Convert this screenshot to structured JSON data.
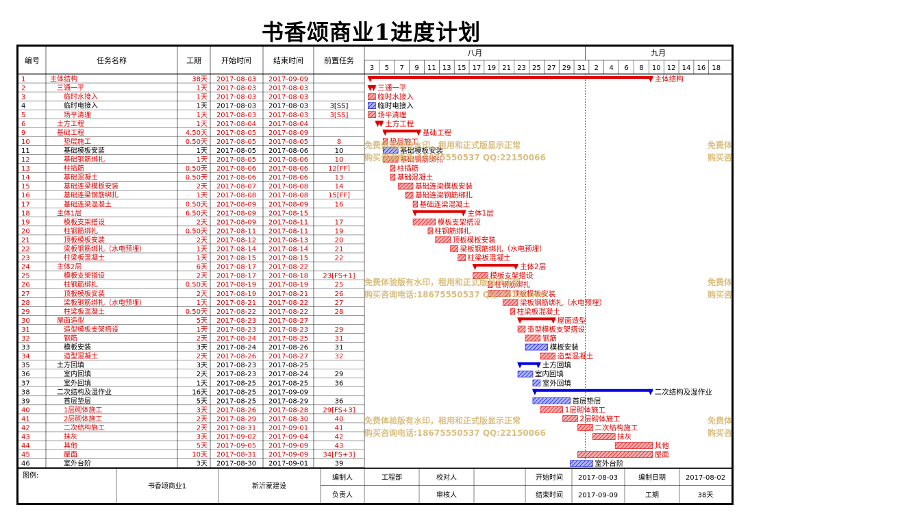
{
  "title": "书香颂商业1进度计划",
  "headers": {
    "id": "编号",
    "name": "任务名称",
    "duration": "工期",
    "start": "开始时间",
    "end": "结束时间",
    "pred": "前置任务"
  },
  "months": [
    {
      "label": "八月"
    },
    {
      "label": "九月"
    }
  ],
  "day_ticks": [
    "3",
    "5",
    "7",
    "9",
    "11",
    "13",
    "15",
    "17",
    "19",
    "21",
    "23",
    "25",
    "27",
    "29",
    "31",
    "2",
    "4",
    "6",
    "8",
    "10",
    "12",
    "14",
    "16",
    "18"
  ],
  "watermark": {
    "line1": "免费体验版有水印，租用和正式版显示正常",
    "line2": "购买咨询电话:18675550537 QQ:22150066"
  },
  "tasks": [
    {
      "id": "1",
      "name": "主体结构",
      "level": 0,
      "duration": "38天",
      "start": "2017-08-03",
      "end": "2017-09-09",
      "pred": "",
      "color": "red",
      "type": "summary"
    },
    {
      "id": "2",
      "name": "三通一平",
      "level": 1,
      "duration": "1天",
      "start": "2017-08-03",
      "end": "2017-08-03",
      "pred": "",
      "color": "red",
      "type": "summary"
    },
    {
      "id": "3",
      "name": "临时水接入",
      "level": 2,
      "duration": "1天",
      "start": "2017-08-03",
      "end": "2017-08-03",
      "pred": "",
      "color": "red",
      "type": "task"
    },
    {
      "id": "4",
      "name": "临时电接入",
      "level": 2,
      "duration": "1天",
      "start": "2017-08-03",
      "end": "2017-08-03",
      "pred": "3[SS]",
      "color": "blue",
      "type": "task"
    },
    {
      "id": "5",
      "name": "场平清理",
      "level": 2,
      "duration": "1天",
      "start": "2017-08-03",
      "end": "2017-08-03",
      "pred": "3[SS]",
      "color": "red",
      "type": "task"
    },
    {
      "id": "6",
      "name": "土方工程",
      "level": 1,
      "duration": "1天",
      "start": "2017-08-04",
      "end": "2017-08-04",
      "pred": "",
      "color": "red",
      "type": "summary"
    },
    {
      "id": "9",
      "name": "基础工程",
      "level": 1,
      "duration": "4.50天",
      "start": "2017-08-05",
      "end": "2017-08-09",
      "pred": "",
      "color": "red",
      "type": "summary"
    },
    {
      "id": "10",
      "name": "垫层施工",
      "level": 2,
      "duration": "0.50天",
      "start": "2017-08-05",
      "end": "2017-08-05",
      "pred": "8",
      "color": "red",
      "type": "task"
    },
    {
      "id": "11",
      "name": "基础模板安装",
      "level": 2,
      "duration": "1天",
      "start": "2017-08-05",
      "end": "2017-08-06",
      "pred": "10",
      "color": "blue",
      "type": "task"
    },
    {
      "id": "12",
      "name": "基础钢筋绑扎",
      "level": 2,
      "duration": "1天",
      "start": "2017-08-05",
      "end": "2017-08-06",
      "pred": "10",
      "color": "red",
      "type": "task"
    },
    {
      "id": "13",
      "name": "柱插筋",
      "level": 2,
      "duration": "0.50天",
      "start": "2017-08-06",
      "end": "2017-08-06",
      "pred": "12[FF]",
      "color": "red",
      "type": "task"
    },
    {
      "id": "14",
      "name": "基础混凝土",
      "level": 2,
      "duration": "0.50天",
      "start": "2017-08-06",
      "end": "2017-08-06",
      "pred": "13",
      "color": "red",
      "type": "task"
    },
    {
      "id": "15",
      "name": "基础连梁模板安装",
      "level": 2,
      "duration": "2天",
      "start": "2017-08-07",
      "end": "2017-08-08",
      "pred": "14",
      "color": "red",
      "type": "task"
    },
    {
      "id": "16",
      "name": "基础连梁钢筋绑扎",
      "level": 2,
      "duration": "1天",
      "start": "2017-08-08",
      "end": "2017-08-08",
      "pred": "15[FF]",
      "color": "red",
      "type": "task"
    },
    {
      "id": "17",
      "name": "基础连梁混凝土",
      "level": 2,
      "duration": "0.50天",
      "start": "2017-08-09",
      "end": "2017-08-09",
      "pred": "16",
      "color": "red",
      "type": "task"
    },
    {
      "id": "18",
      "name": "主体1层",
      "level": 1,
      "duration": "6.50天",
      "start": "2017-08-09",
      "end": "2017-08-15",
      "pred": "",
      "color": "red",
      "type": "summary"
    },
    {
      "id": "19",
      "name": "模板支架搭设",
      "level": 2,
      "duration": "2天",
      "start": "2017-08-09",
      "end": "2017-08-11",
      "pred": "17",
      "color": "red",
      "type": "task"
    },
    {
      "id": "20",
      "name": "柱钢筋绑扎",
      "level": 2,
      "duration": "0.50天",
      "start": "2017-08-11",
      "end": "2017-08-11",
      "pred": "19",
      "color": "red",
      "type": "task"
    },
    {
      "id": "21",
      "name": "顶板模板安装",
      "level": 2,
      "duration": "2天",
      "start": "2017-08-12",
      "end": "2017-08-13",
      "pred": "20",
      "color": "red",
      "type": "task"
    },
    {
      "id": "22",
      "name": "梁板钢筋绑扎（水电预埋）",
      "level": 2,
      "duration": "1天",
      "start": "2017-08-14",
      "end": "2017-08-14",
      "pred": "21",
      "color": "red",
      "type": "task"
    },
    {
      "id": "23",
      "name": "柱梁板混凝土",
      "level": 2,
      "duration": "1天",
      "start": "2017-08-15",
      "end": "2017-08-15",
      "pred": "22",
      "color": "red",
      "type": "task"
    },
    {
      "id": "24",
      "name": "主体2层",
      "level": 1,
      "duration": "6天",
      "start": "2017-08-17",
      "end": "2017-08-22",
      "pred": "",
      "color": "red",
      "type": "summary"
    },
    {
      "id": "25",
      "name": "模板支架搭设",
      "level": 2,
      "duration": "2天",
      "start": "2017-08-17",
      "end": "2017-08-18",
      "pred": "23[FS+1]",
      "color": "red",
      "type": "task"
    },
    {
      "id": "26",
      "name": "柱钢筋绑扎",
      "level": 2,
      "duration": "0.50天",
      "start": "2017-08-19",
      "end": "2017-08-19",
      "pred": "25",
      "color": "red",
      "type": "task"
    },
    {
      "id": "27",
      "name": "顶板模板安装",
      "level": 2,
      "duration": "2天",
      "start": "2017-08-19",
      "end": "2017-08-21",
      "pred": "26",
      "color": "red",
      "type": "task"
    },
    {
      "id": "28",
      "name": "梁板钢筋绑扎（水电预埋）",
      "level": 2,
      "duration": "1天",
      "start": "2017-08-21",
      "end": "2017-08-22",
      "pred": "27",
      "color": "red",
      "type": "task"
    },
    {
      "id": "29",
      "name": "柱梁板混凝土",
      "level": 2,
      "duration": "0.50天",
      "start": "2017-08-22",
      "end": "2017-08-22",
      "pred": "28",
      "color": "red",
      "type": "task"
    },
    {
      "id": "30",
      "name": "屋面造型",
      "level": 1,
      "duration": "5天",
      "start": "2017-08-23",
      "end": "2017-08-27",
      "pred": "",
      "color": "red",
      "type": "summary"
    },
    {
      "id": "31",
      "name": "造型模板支架搭设",
      "level": 2,
      "duration": "1天",
      "start": "2017-08-23",
      "end": "2017-08-23",
      "pred": "29",
      "color": "red",
      "type": "task"
    },
    {
      "id": "32",
      "name": "钢筋",
      "level": 2,
      "duration": "2天",
      "start": "2017-08-24",
      "end": "2017-08-25",
      "pred": "31",
      "color": "red",
      "type": "task"
    },
    {
      "id": "33",
      "name": "模板安装",
      "level": 2,
      "duration": "3天",
      "start": "2017-08-24",
      "end": "2017-08-26",
      "pred": "31",
      "color": "blue",
      "type": "task"
    },
    {
      "id": "34",
      "name": "造型混凝土",
      "level": 2,
      "duration": "2天",
      "start": "2017-08-26",
      "end": "2017-08-27",
      "pred": "32",
      "color": "red",
      "type": "task"
    },
    {
      "id": "35",
      "name": "土方回填",
      "level": 1,
      "duration": "3天",
      "start": "2017-08-23",
      "end": "2017-08-25",
      "pred": "",
      "color": "blue",
      "type": "summary"
    },
    {
      "id": "36",
      "name": "室内回填",
      "level": 2,
      "duration": "2天",
      "start": "2017-08-23",
      "end": "2017-08-24",
      "pred": "29",
      "color": "blue",
      "type": "task"
    },
    {
      "id": "37",
      "name": "室外回填",
      "level": 2,
      "duration": "1天",
      "start": "2017-08-25",
      "end": "2017-08-25",
      "pred": "36",
      "color": "blue",
      "type": "task"
    },
    {
      "id": "38",
      "name": "二次结构及湿作业",
      "level": 1,
      "duration": "16天",
      "start": "2017-08-25",
      "end": "2017-09-09",
      "pred": "",
      "color": "blue",
      "type": "summary"
    },
    {
      "id": "39",
      "name": "首层垫层",
      "level": 2,
      "duration": "5天",
      "start": "2017-08-25",
      "end": "2017-08-29",
      "pred": "36",
      "color": "blue",
      "type": "task"
    },
    {
      "id": "40",
      "name": "1层砌体施工",
      "level": 2,
      "duration": "3天",
      "start": "2017-08-26",
      "end": "2017-08-28",
      "pred": "29[FS+3]",
      "color": "red",
      "type": "task"
    },
    {
      "id": "41",
      "name": "2层砌体施工",
      "level": 2,
      "duration": "2天",
      "start": "2017-08-29",
      "end": "2017-08-30",
      "pred": "40",
      "color": "red",
      "type": "task"
    },
    {
      "id": "42",
      "name": "二次结构施工",
      "level": 2,
      "duration": "2天",
      "start": "2017-08-31",
      "end": "2017-09-01",
      "pred": "41",
      "color": "red",
      "type": "task"
    },
    {
      "id": "43",
      "name": "抹灰",
      "level": 2,
      "duration": "3天",
      "start": "2017-09-02",
      "end": "2017-09-04",
      "pred": "42",
      "color": "red",
      "type": "task"
    },
    {
      "id": "44",
      "name": "其他",
      "level": 2,
      "duration": "5天",
      "start": "2017-09-05",
      "end": "2017-09-09",
      "pred": "43",
      "color": "red",
      "type": "task"
    },
    {
      "id": "45",
      "name": "屋面",
      "level": 2,
      "duration": "10天",
      "start": "2017-08-31",
      "end": "2017-09-09",
      "pred": "34[FS+3]",
      "color": "red",
      "type": "task"
    },
    {
      "id": "46",
      "name": "室外台阶",
      "level": 2,
      "duration": "3天",
      "start": "2017-08-30",
      "end": "2017-09-01",
      "pred": "39",
      "color": "blue",
      "type": "task"
    }
  ],
  "footer": {
    "legend_label": "图例:",
    "project": "书香颂商业1",
    "company": "新沂蒙建设",
    "compiler_label": "编制人",
    "compiler": "工程部",
    "checker_label": "校对人",
    "start_label": "开始时间",
    "start": "2017-08-03",
    "compile_date_label": "编制日期",
    "compile_date": "2017-08-02",
    "owner_label": "负责人",
    "reviewer_label": "审核人",
    "end_label": "结束时间",
    "end": "2017-09-09",
    "duration_label": "工期",
    "duration": "38天"
  },
  "colors": {
    "red": "#e00000",
    "blue": "#0000e0",
    "grid": "#000000"
  }
}
